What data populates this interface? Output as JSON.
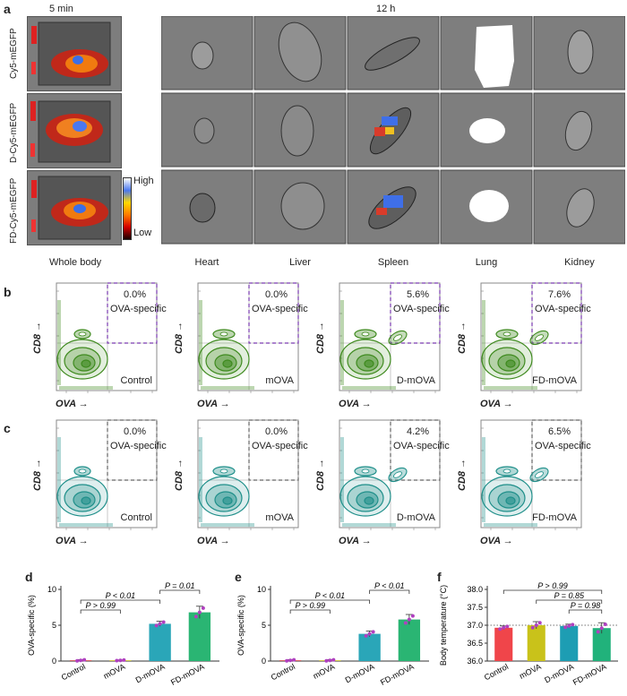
{
  "panel_a": {
    "label": "a",
    "time_left": "5 min",
    "time_right": "12 h",
    "rows": [
      "Cy5-mEGFP",
      "D-Cy5-mEGFP",
      "FD-Cy5-mEGFP"
    ],
    "scale_high": "High",
    "scale_low": "Low",
    "whole_body_label": "Whole body",
    "organs": [
      "Heart",
      "Liver",
      "Spleen",
      "Lung",
      "Kidney"
    ]
  },
  "panel_b": {
    "label": "b",
    "color": "#3e8a1e",
    "plots": [
      {
        "pct": "0.0%",
        "gate": "OVA-specific",
        "group": "Control"
      },
      {
        "pct": "0.0%",
        "gate": "OVA-specific",
        "group": "mOVA"
      },
      {
        "pct": "5.6%",
        "gate": "OVA-specific",
        "group": "D-mOVA"
      },
      {
        "pct": "7.6%",
        "gate": "OVA-specific",
        "group": "FD-mOVA"
      }
    ],
    "y_axis": "CD8 →",
    "x_axis": "OVA →"
  },
  "panel_c": {
    "label": "c",
    "color": "#1f8f8a",
    "plots": [
      {
        "pct": "0.0%",
        "gate": "OVA-specific",
        "group": "Control"
      },
      {
        "pct": "0.0%",
        "gate": "OVA-specific",
        "group": "mOVA"
      },
      {
        "pct": "4.2%",
        "gate": "OVA-specific",
        "group": "D-mOVA"
      },
      {
        "pct": "6.5%",
        "gate": "OVA-specific",
        "group": "FD-mOVA"
      }
    ],
    "y_axis": "CD8 →",
    "x_axis": "OVA →"
  },
  "chart_data": [
    {
      "panel": "d",
      "type": "bar",
      "ylabel": "OVA-specific (%)",
      "ylim": [
        0,
        10
      ],
      "yticks": [
        "0",
        "5",
        "10"
      ],
      "categories": [
        "Control",
        "mOVA",
        "D-mOVA",
        "FD-mOVA"
      ],
      "values": [
        0.1,
        0.1,
        5.2,
        6.8
      ],
      "errors": [
        0.1,
        0.05,
        0.35,
        0.85
      ],
      "colors": [
        "#cc3d3d",
        "#c4b818",
        "#2aa6b8",
        "#2ab573"
      ],
      "annotations": [
        {
          "text": "P < 0.01",
          "from": 0,
          "to": 2,
          "level": 2
        },
        {
          "text": "P > 0.99",
          "from": 0,
          "to": 1,
          "level": 1
        },
        {
          "text": "P = 0.01",
          "from": 2,
          "to": 3,
          "level": 3
        }
      ]
    },
    {
      "panel": "e",
      "type": "bar",
      "ylabel": "OVA-specific (%)",
      "ylim": [
        0,
        10
      ],
      "yticks": [
        "0",
        "5",
        "10"
      ],
      "categories": [
        "Control",
        "mOVA",
        "D-mOVA",
        "FD-mOVA"
      ],
      "values": [
        0.1,
        0.1,
        3.8,
        5.8
      ],
      "errors": [
        0.1,
        0.1,
        0.4,
        0.7
      ],
      "colors": [
        "#cc3d3d",
        "#c4b818",
        "#2aa6b8",
        "#2ab573"
      ],
      "annotations": [
        {
          "text": "P < 0.01",
          "from": 0,
          "to": 2,
          "level": 2
        },
        {
          "text": "P > 0.99",
          "from": 0,
          "to": 1,
          "level": 1
        },
        {
          "text": "P < 0.01",
          "from": 2,
          "to": 3,
          "level": 3
        }
      ]
    },
    {
      "panel": "f",
      "type": "bar",
      "ylabel": "Body temperature (°C)",
      "ylim": [
        36.0,
        38.0
      ],
      "yticks": [
        "36.0",
        "36.5",
        "37.0",
        "37.5",
        "38.0"
      ],
      "reference_line": 37.0,
      "categories": [
        "Control",
        "mOVA",
        "D-mOVA",
        "FD-mOVA"
      ],
      "values": [
        36.93,
        37.0,
        36.98,
        36.92
      ],
      "errors": [
        0.05,
        0.1,
        0.05,
        0.15
      ],
      "colors": [
        "#f0454a",
        "#c9c21a",
        "#1d9db3",
        "#21b27b"
      ],
      "annotations": [
        {
          "text": "P > 0.99",
          "from": 0,
          "to": 3,
          "level": 3
        },
        {
          "text": "P = 0.85",
          "from": 1,
          "to": 3,
          "level": 2
        },
        {
          "text": "P = 0.98",
          "from": 2,
          "to": 3,
          "level": 1
        }
      ]
    }
  ]
}
